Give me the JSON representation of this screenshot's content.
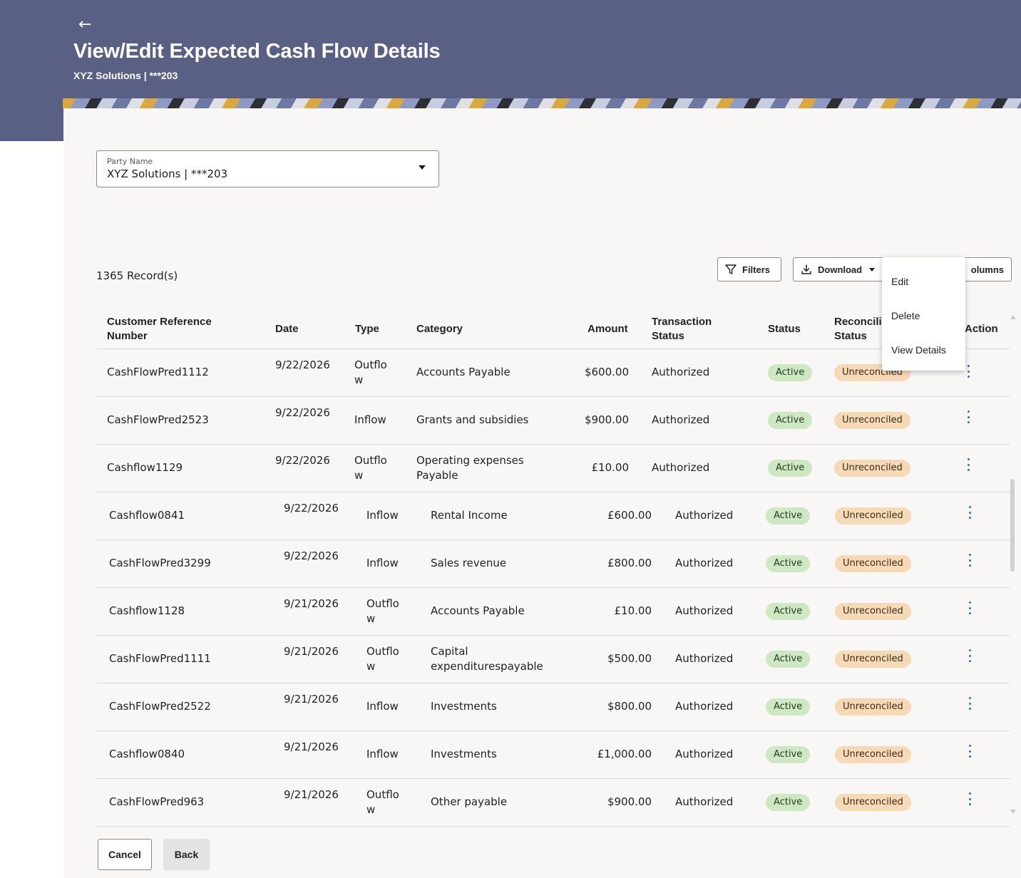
{
  "header": {
    "back_icon": "arrow-left-icon",
    "title": "View/Edit Expected Cash Flow Details",
    "subtitle": "XYZ Solutions | ***203",
    "background_color": "#5a6084"
  },
  "party_select": {
    "label": "Party Name",
    "value": "XYZ Solutions | ***203"
  },
  "toolbar": {
    "records_label": "1365 Record(s)",
    "filters_label": "Filters",
    "download_label": "Download",
    "columns_label": "olumns"
  },
  "table": {
    "headers": {
      "ref": "Customer Reference Number",
      "date": "Date",
      "type": "Type",
      "category": "Category",
      "amount": "Amount",
      "txn_status": "Transaction Status",
      "status": "Status",
      "recon": "Reconcili Status",
      "action": "Action"
    },
    "rows": [
      {
        "ref": "CashFlowPred1112",
        "date": "9/22/2026",
        "type": "Outflow",
        "category": "Accounts Payable",
        "amount": "$600.00",
        "txn_status": "Authorized",
        "status": "Active",
        "recon": "Unreconciled"
      },
      {
        "ref": "CashFlowPred2523",
        "date": "9/22/2026",
        "type": "Inflow",
        "category": "Grants and subsidies",
        "amount": "$900.00",
        "txn_status": "Authorized",
        "status": "Active",
        "recon": "Unreconciled"
      },
      {
        "ref": "Cashflow1129",
        "date": "9/22/2026",
        "type": "Outflow",
        "category": "Operating expenses Payable",
        "amount": "£10.00",
        "txn_status": "Authorized",
        "status": "Active",
        "recon": "Unreconciled"
      },
      {
        "ref": "Cashflow0841",
        "date": "9/22/2026",
        "type": "Inflow",
        "category": "Rental Income",
        "amount": "£600.00",
        "txn_status": "Authorized",
        "status": "Active",
        "recon": "Unreconciled"
      },
      {
        "ref": "CashFlowPred3299",
        "date": "9/22/2026",
        "type": "Inflow",
        "category": "Sales revenue",
        "amount": "£800.00",
        "txn_status": "Authorized",
        "status": "Active",
        "recon": "Unreconciled"
      },
      {
        "ref": "Cashflow1128",
        "date": "9/21/2026",
        "type": "Outflow",
        "category": "Accounts Payable",
        "amount": "£10.00",
        "txn_status": "Authorized",
        "status": "Active",
        "recon": "Unreconciled"
      },
      {
        "ref": "CashFlowPred1111",
        "date": "9/21/2026",
        "type": "Outflow",
        "category": "Capital expenditurespayable",
        "amount": "$500.00",
        "txn_status": "Authorized",
        "status": "Active",
        "recon": "Unreconciled"
      },
      {
        "ref": "CashFlowPred2522",
        "date": "9/21/2026",
        "type": "Inflow",
        "category": "Investments",
        "amount": "$800.00",
        "txn_status": "Authorized",
        "status": "Active",
        "recon": "Unreconciled"
      },
      {
        "ref": "Cashflow0840",
        "date": "9/21/2026",
        "type": "Inflow",
        "category": "Investments",
        "amount": "£1,000.00",
        "txn_status": "Authorized",
        "status": "Active",
        "recon": "Unreconciled"
      },
      {
        "ref": "CashFlowPred963",
        "date": "9/21/2026",
        "type": "Outflow",
        "category": "Other payable",
        "amount": "$900.00",
        "txn_status": "Authorized",
        "status": "Active",
        "recon": "Unreconciled"
      }
    ]
  },
  "action_menu": {
    "items": [
      "Edit",
      "Delete",
      "View Details"
    ]
  },
  "footer": {
    "cancel_label": "Cancel",
    "back_label": "Back"
  },
  "colors": {
    "active_badge": "#cfe8c4",
    "unreconciled_badge": "#f6d9b7",
    "kebab": "#2f6fb3"
  }
}
